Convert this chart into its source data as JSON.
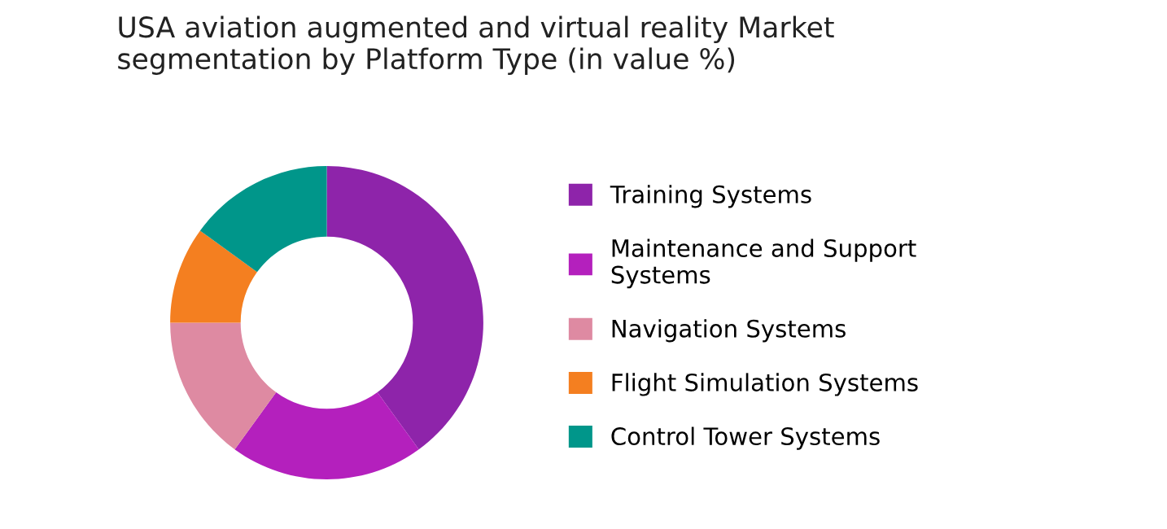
{
  "chart_data": {
    "type": "donut",
    "title": "USA aviation augmented and virtual reality Market\nsegmentation by Platform Type (in value %)",
    "categories": [
      "Training Systems",
      "Maintenance and Support\nSystems",
      "Navigation Systems",
      "Flight Simulation Systems",
      "Control Tower Systems"
    ],
    "values": [
      40,
      20,
      15,
      10,
      15
    ],
    "colors": [
      "#8e24aa",
      "#b420bd",
      "#de8aa2",
      "#f47f20",
      "#00968a"
    ],
    "legend": "right"
  }
}
